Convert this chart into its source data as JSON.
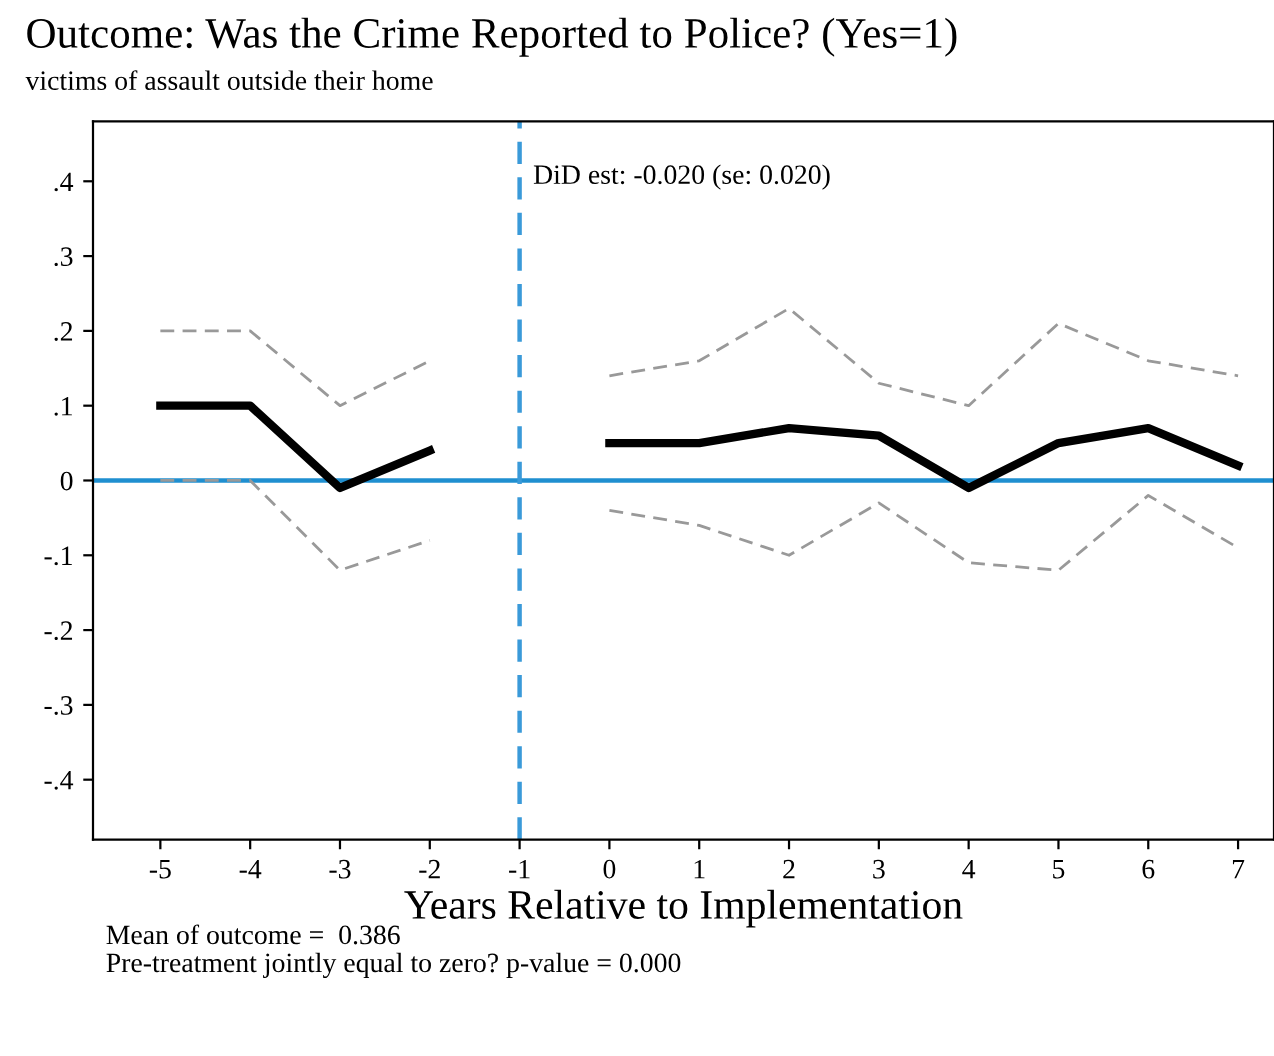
{
  "chart_data": {
    "type": "line",
    "title": "Outcome: Was the Crime Reported to Police? (Yes=1)",
    "subtitle": "victims of assault outside their home",
    "xlabel": "Years Relative to Implementation",
    "x": [
      -5,
      -4,
      -3,
      -2,
      -1,
      0,
      1,
      2,
      3,
      4,
      5,
      6,
      7
    ],
    "series": [
      {
        "color": "#000000",
        "line_style": "solid",
        "values": [
          0.1,
          0.1,
          -0.01,
          0.04,
          null,
          0.05,
          0.05,
          0.07,
          0.06,
          -0.01,
          0.05,
          0.07,
          0.02
        ]
      },
      {
        "color": "#999999",
        "line_style": "dashed",
        "values": [
          0.2,
          0.2,
          0.1,
          0.16,
          null,
          0.14,
          0.16,
          0.23,
          0.13,
          0.1,
          0.21,
          0.16,
          0.14
        ]
      },
      {
        "color": "#999999",
        "line_style": "dashed",
        "values": [
          0.0,
          0.0,
          -0.12,
          -0.08,
          null,
          -0.04,
          -0.06,
          -0.1,
          -0.03,
          -0.11,
          -0.12,
          -0.02,
          -0.09
        ]
      }
    ],
    "xlim": [
      -5.75,
      7.4
    ],
    "xticks": [
      -5,
      -4,
      -3,
      -2,
      -1,
      0,
      1,
      2,
      3,
      4,
      5,
      6,
      7
    ],
    "ylim": [
      -0.48,
      0.48
    ],
    "yticks": [
      {
        "value": -0.4,
        "label": "-.4"
      },
      {
        "value": -0.3,
        "label": "-.3"
      },
      {
        "value": -0.2,
        "label": "-.2"
      },
      {
        "value": -0.1,
        "label": "-.1"
      },
      0,
      {
        "value": 0.1,
        "label": ".1"
      },
      {
        "value": 0.2,
        "label": ".2"
      },
      {
        "value": 0.3,
        "label": ".3"
      },
      {
        "value": 0.4,
        "label": ".4"
      }
    ],
    "ref_lines": [
      {
        "axis": "y",
        "value": 0,
        "color": "#1f8fd0",
        "line_style": "solid"
      },
      {
        "axis": "x",
        "value": -1,
        "color": "#3a9ad9",
        "line_style": "dashed"
      }
    ],
    "annotations": [
      "DiD est: -0.020 (se: 0.020)",
      "Mean of outcome =  0.386",
      "Pre-treatment jointly equal to zero? p-value = 0.000"
    ],
    "grid": false,
    "legend": false,
    "marker": "none"
  }
}
